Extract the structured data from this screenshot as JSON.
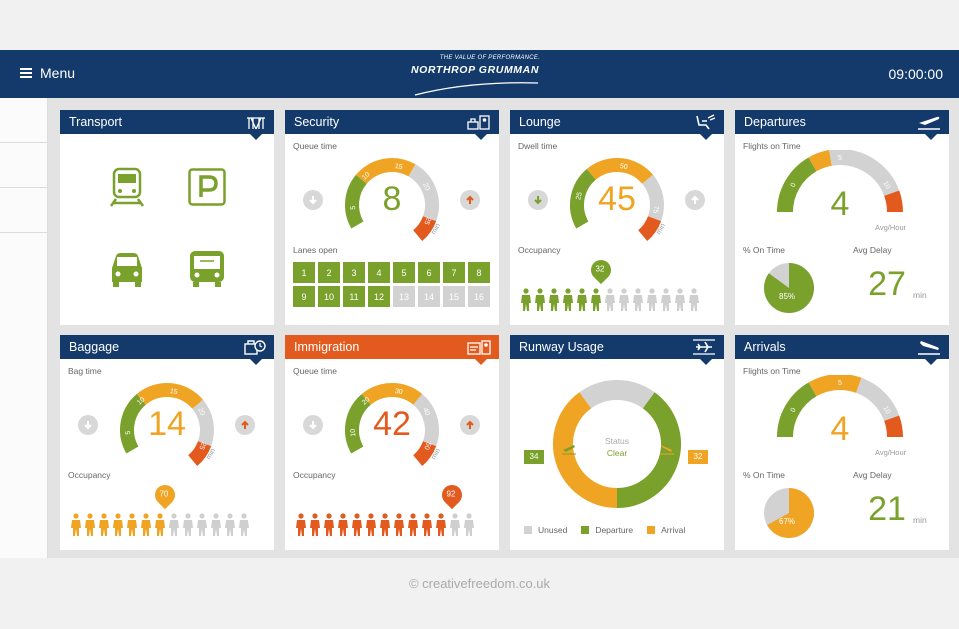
{
  "header": {
    "menu_label": "Menu",
    "brand_tagline": "THE VALUE OF PERFORMANCE.",
    "brand_name": "NORTHROP GRUMMAN",
    "clock": "09:00:00"
  },
  "colors": {
    "navy": "#133a6b",
    "green": "#7aa12b",
    "orange": "#f0a424",
    "red": "#e35a1f",
    "grey": "#d2d2d2"
  },
  "transport": {
    "title": "Transport",
    "icons": [
      "train-icon",
      "parking-icon",
      "car-icon",
      "bus-icon"
    ]
  },
  "security": {
    "title": "Security",
    "metric_label": "Queue time",
    "value": "8",
    "unit": "min",
    "ticks": [
      "5",
      "10",
      "15",
      "20",
      "25"
    ],
    "lanes_label": "Lanes open",
    "lanes": [
      {
        "n": "1",
        "open": true
      },
      {
        "n": "2",
        "open": true
      },
      {
        "n": "3",
        "open": true
      },
      {
        "n": "4",
        "open": true
      },
      {
        "n": "5",
        "open": true
      },
      {
        "n": "6",
        "open": true
      },
      {
        "n": "7",
        "open": true
      },
      {
        "n": "8",
        "open": true
      },
      {
        "n": "9",
        "open": true
      },
      {
        "n": "10",
        "open": true
      },
      {
        "n": "11",
        "open": true
      },
      {
        "n": "12",
        "open": true
      },
      {
        "n": "13",
        "open": false
      },
      {
        "n": "14",
        "open": false
      },
      {
        "n": "15",
        "open": false
      },
      {
        "n": "16",
        "open": false
      }
    ]
  },
  "lounge": {
    "title": "Lounge",
    "metric_label": "Dwell time",
    "value": "45",
    "unit": "min",
    "ticks": [
      "25",
      "50",
      "75"
    ],
    "occupancy_label": "Occupancy",
    "occupancy": "32",
    "occupancy_fraction": 0.46
  },
  "departures": {
    "title": "Departures",
    "metric_label": "Flights on Time",
    "value": "4",
    "unit": "Avg/Hour",
    "ticks": [
      "0",
      "5",
      "10"
    ],
    "pct_label": "% On Time",
    "pct": "85%",
    "pct_value": 85,
    "delay_label": "Avg Delay",
    "delay": "27",
    "delay_unit": "min"
  },
  "baggage": {
    "title": "Baggage",
    "metric_label": "Bag time",
    "value": "14",
    "unit": "min",
    "ticks": [
      "5",
      "10",
      "15",
      "20",
      "25"
    ],
    "occupancy_label": "Occupancy",
    "occupancy": "70",
    "occupancy_fraction": 0.54
  },
  "immigration": {
    "title": "Immigration",
    "metric_label": "Queue time",
    "value": "42",
    "unit": "min",
    "ticks": [
      "10",
      "20",
      "30",
      "40",
      "50"
    ],
    "occupancy_label": "Occupancy",
    "occupancy": "92",
    "occupancy_fraction": 0.85
  },
  "runway": {
    "title": "Runway Usage",
    "status_label": "Status",
    "status": "Clear",
    "departure_count": "34",
    "arrival_count": "32",
    "legend": [
      "Unused",
      "Departure",
      "Arrival"
    ],
    "segments": [
      {
        "name": "Unused",
        "pct": 20
      },
      {
        "name": "Departure",
        "pct": 40
      },
      {
        "name": "Arrival",
        "pct": 40
      }
    ]
  },
  "arrivals": {
    "title": "Arrivals",
    "metric_label": "Flights on Time",
    "value": "4",
    "unit": "Avg/Hour",
    "ticks": [
      "0",
      "5",
      "10"
    ],
    "pct_label": "% On Time",
    "pct": "67%",
    "pct_value": 67,
    "delay_label": "Avg Delay",
    "delay": "21",
    "delay_unit": "min"
  },
  "footer": {
    "credit": "© creativefreedom.co.uk"
  }
}
